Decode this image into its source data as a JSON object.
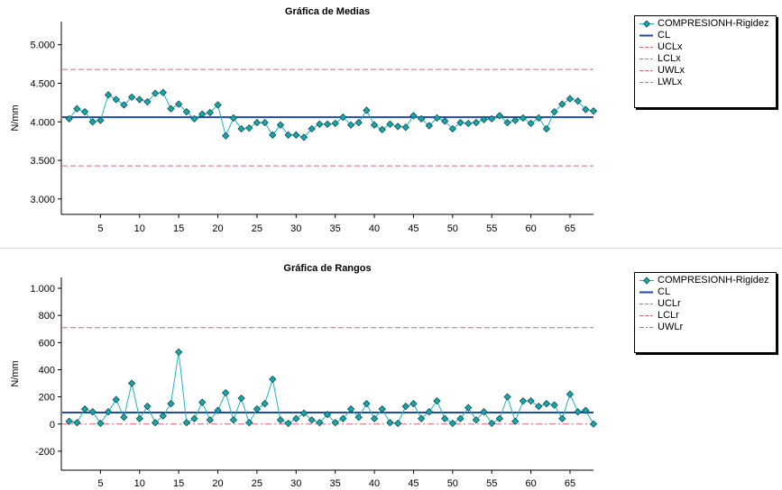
{
  "colors": {
    "series": "#1ab3c4",
    "marker_fill": "#1aa6a8",
    "marker_stroke": "#0c4d57",
    "center_line": "#1f4aa8",
    "limit_line": "#e0607a"
  },
  "chart_data": [
    {
      "type": "line",
      "title": "Gráfica de Medias",
      "xlabel": "",
      "ylabel": "N/mm",
      "xlim": [
        0,
        68
      ],
      "ylim": [
        2800,
        5300
      ],
      "yticks": [
        3000,
        3500,
        4000,
        4500,
        5000
      ],
      "ytick_labels": [
        "3.000",
        "3.500",
        "4.000",
        "4.500",
        "5.000"
      ],
      "xticks": [
        5,
        10,
        15,
        20,
        25,
        30,
        35,
        40,
        45,
        50,
        55,
        60,
        65
      ],
      "xtick_labels": [
        "5",
        "10",
        "15",
        "20",
        "25",
        "30",
        "35",
        "40",
        "45",
        "50",
        "55",
        "60",
        "65"
      ],
      "grid": false,
      "legend_position": "right",
      "series": [
        {
          "name": "COMPRESIONH-Rigidez",
          "x": [
            1,
            2,
            3,
            4,
            5,
            6,
            7,
            8,
            9,
            10,
            11,
            12,
            13,
            14,
            15,
            16,
            17,
            18,
            19,
            20,
            21,
            22,
            23,
            24,
            25,
            26,
            27,
            28,
            29,
            30,
            31,
            32,
            33,
            34,
            35,
            36,
            37,
            38,
            39,
            40,
            41,
            42,
            43,
            44,
            45,
            46,
            47,
            48,
            49,
            50,
            51,
            52,
            53,
            54,
            55,
            56,
            57,
            58,
            59,
            60,
            61,
            62,
            63,
            64,
            65,
            66,
            67,
            68
          ],
          "values": [
            4040,
            4170,
            4130,
            4000,
            4020,
            4350,
            4290,
            4220,
            4320,
            4290,
            4260,
            4370,
            4380,
            4170,
            4230,
            4130,
            4040,
            4100,
            4120,
            4220,
            3820,
            4050,
            3910,
            3920,
            3990,
            3990,
            3830,
            3960,
            3830,
            3830,
            3800,
            3910,
            3970,
            3970,
            3980,
            4060,
            3960,
            3990,
            4150,
            3960,
            3900,
            3970,
            3940,
            3930,
            4080,
            4040,
            3950,
            4050,
            4010,
            3910,
            3990,
            3980,
            3990,
            4030,
            4040,
            4080,
            3990,
            4020,
            4050,
            3980,
            4050,
            3910,
            4130,
            4230,
            4300,
            4270,
            4160,
            4140
          ]
        }
      ],
      "lines": [
        {
          "name": "CL",
          "value": 4060,
          "style": "solid"
        },
        {
          "name": "UCLx",
          "value": 4680,
          "style": "dashed"
        },
        {
          "name": "LCLx",
          "value": 3430,
          "style": "dashed"
        },
        {
          "name": "UWLx",
          "value": null,
          "style": "dashed"
        },
        {
          "name": "LWLx",
          "value": null,
          "style": "dashed"
        }
      ]
    },
    {
      "type": "line",
      "title": "Gráfica de Rangos",
      "xlabel": "",
      "ylabel": "N/mm",
      "xlim": [
        0,
        68
      ],
      "ylim": [
        -340,
        1080
      ],
      "yticks": [
        -200,
        0,
        200,
        400,
        600,
        800,
        1000
      ],
      "ytick_labels": [
        "-200",
        "0",
        "200",
        "400",
        "600",
        "800",
        "1.000"
      ],
      "xticks": [
        5,
        10,
        15,
        20,
        25,
        30,
        35,
        40,
        45,
        50,
        55,
        60,
        65
      ],
      "xtick_labels": [
        "5",
        "10",
        "15",
        "20",
        "25",
        "30",
        "35",
        "40",
        "45",
        "50",
        "55",
        "60",
        "65"
      ],
      "grid": false,
      "legend_position": "right",
      "series": [
        {
          "name": "COMPRESIONH-Rigidez",
          "x": [
            1,
            2,
            3,
            4,
            5,
            6,
            7,
            8,
            9,
            10,
            11,
            12,
            13,
            14,
            15,
            16,
            17,
            18,
            19,
            20,
            21,
            22,
            23,
            24,
            25,
            26,
            27,
            28,
            29,
            30,
            31,
            32,
            33,
            34,
            35,
            36,
            37,
            38,
            39,
            40,
            41,
            42,
            43,
            44,
            45,
            46,
            47,
            48,
            49,
            50,
            51,
            52,
            53,
            54,
            55,
            56,
            57,
            58,
            59,
            60,
            61,
            62,
            63,
            64,
            65,
            66,
            67,
            68
          ],
          "values": [
            20,
            10,
            110,
            90,
            5,
            90,
            180,
            50,
            300,
            40,
            130,
            10,
            60,
            150,
            530,
            10,
            40,
            160,
            30,
            100,
            230,
            30,
            190,
            10,
            110,
            150,
            330,
            30,
            5,
            40,
            80,
            30,
            10,
            70,
            10,
            40,
            110,
            50,
            150,
            40,
            110,
            10,
            5,
            130,
            150,
            40,
            90,
            170,
            40,
            5,
            40,
            120,
            30,
            90,
            5,
            40,
            200,
            20,
            170,
            170,
            130,
            150,
            140,
            40,
            220,
            90,
            100,
            0
          ]
        }
      ],
      "lines": [
        {
          "name": "CL",
          "value": 85,
          "style": "solid"
        },
        {
          "name": "UCLr",
          "value": 710,
          "style": "dashed"
        },
        {
          "name": "LCLr",
          "value": null,
          "style": "dashed"
        },
        {
          "name": "UWLr",
          "value": 0,
          "style": "dashdot"
        }
      ]
    }
  ]
}
